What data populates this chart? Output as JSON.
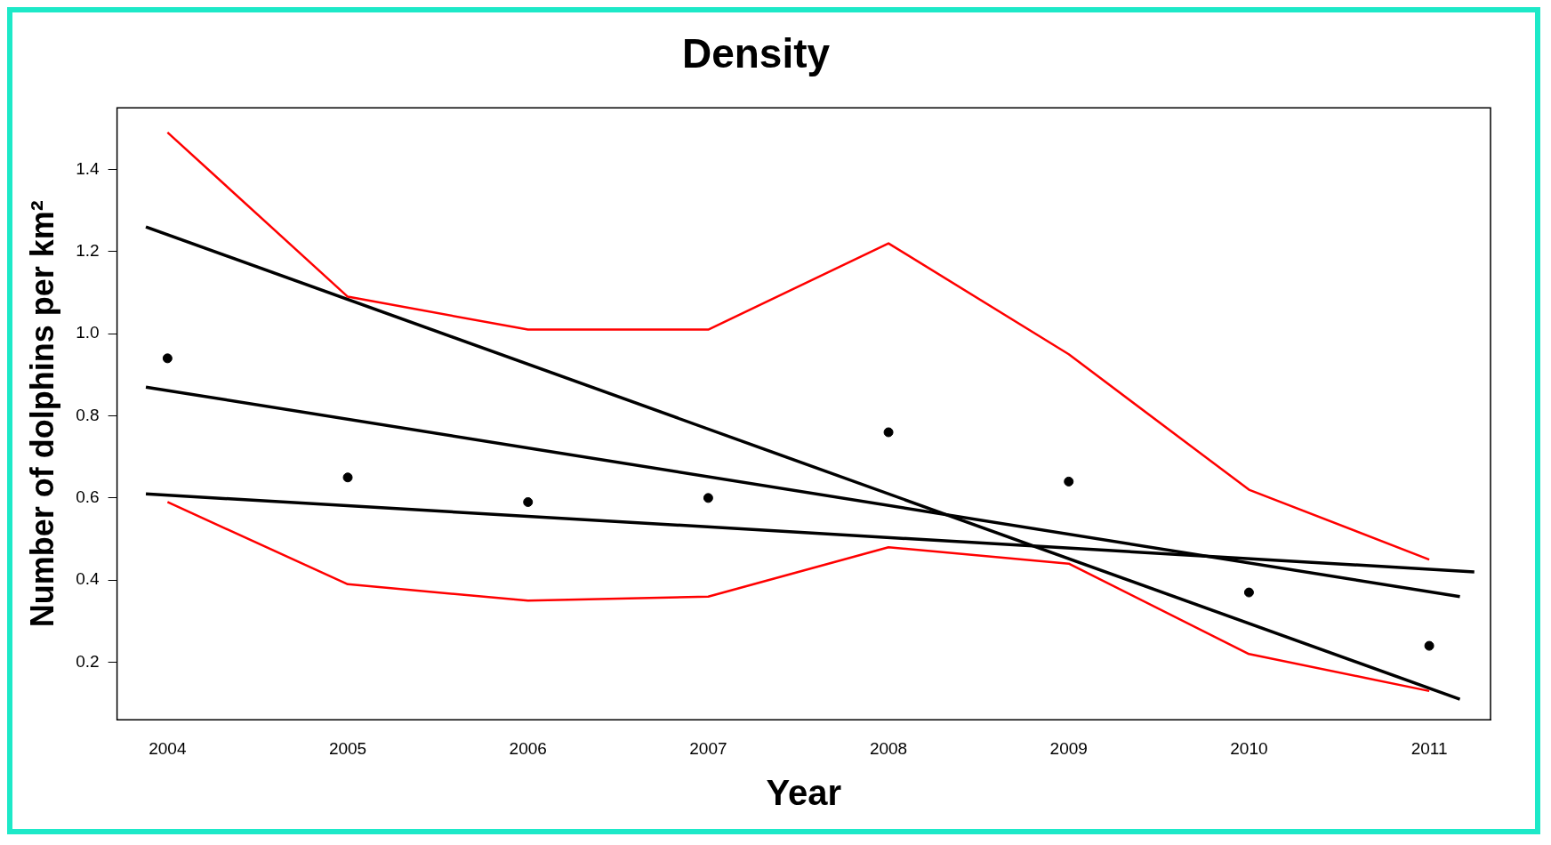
{
  "chart_data": {
    "type": "scatter",
    "title": "Density",
    "xlabel": "Year",
    "ylabel": "Number of dolphins per km²",
    "x": [
      2004,
      2005,
      2006,
      2007,
      2008,
      2009,
      2010,
      2011
    ],
    "series": [
      {
        "type": "scatter",
        "color": "#000000",
        "marker": "circle",
        "values": [
          0.94,
          0.65,
          0.59,
          0.6,
          0.76,
          0.64,
          0.37,
          0.24
        ]
      },
      {
        "type": "line",
        "color": "#ff0000",
        "line_style": "solid",
        "values": [
          1.49,
          1.09,
          1.01,
          1.01,
          1.22,
          0.95,
          0.62,
          0.45
        ]
      },
      {
        "type": "line",
        "color": "#ff0000",
        "line_style": "solid",
        "values": [
          0.59,
          0.39,
          0.35,
          0.36,
          0.48,
          0.44,
          0.22,
          0.13
        ]
      },
      {
        "type": "line",
        "color": "#000000",
        "line_style": "solid",
        "x": [
          2003.88,
          2011.17
        ],
        "values": [
          1.26,
          0.11
        ]
      },
      {
        "type": "line",
        "color": "#000000",
        "line_style": "solid",
        "x": [
          2003.88,
          2011.17
        ],
        "values": [
          0.87,
          0.36
        ]
      },
      {
        "type": "line",
        "color": "#000000",
        "line_style": "solid",
        "x": [
          2003.88,
          2011.25
        ],
        "values": [
          0.61,
          0.42
        ]
      }
    ],
    "xlim": [
      2003.72,
      2011.34
    ],
    "ylim": [
      0.06,
      1.55
    ],
    "xticks": [
      2004,
      2005,
      2006,
      2007,
      2008,
      2009,
      2010,
      2011
    ],
    "yticks": [
      0.2,
      0.4,
      0.6,
      0.8,
      {
        "value": 1,
        "label": "1.0"
      },
      1.2,
      1.4
    ],
    "grid": false,
    "legend": false
  }
}
